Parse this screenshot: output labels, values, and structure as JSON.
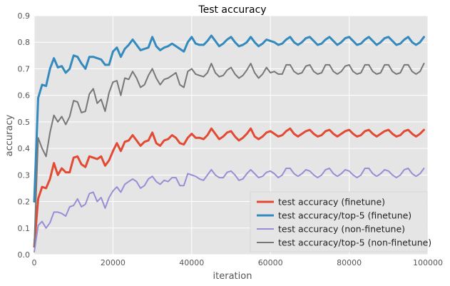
{
  "chart_data": {
    "type": "line",
    "title": "Test accuracy",
    "xlabel": "iteration",
    "ylabel": "accuracy",
    "xlim": [
      0,
      100000
    ],
    "ylim": [
      0.0,
      0.9
    ],
    "xticks": [
      0,
      20000,
      40000,
      60000,
      80000,
      100000
    ],
    "xtick_labels": [
      "0",
      "20000",
      "40000",
      "60000",
      "80000",
      "100000"
    ],
    "yticks": [
      0.0,
      0.1,
      0.2,
      0.3,
      0.4,
      0.5,
      0.6,
      0.7,
      0.8,
      0.9
    ],
    "ytick_labels": [
      "0.0",
      "0.1",
      "0.2",
      "0.3",
      "0.4",
      "0.5",
      "0.6",
      "0.7",
      "0.8",
      "0.9"
    ],
    "grid": true,
    "background": "#e5e5e5",
    "legend_position": "bottom-right",
    "x": [
      0,
      1000,
      2000,
      3000,
      4000,
      5000,
      6000,
      7000,
      8000,
      9000,
      10000,
      11000,
      12000,
      13000,
      14000,
      15000,
      16000,
      17000,
      18000,
      19000,
      20000,
      21000,
      22000,
      23000,
      24000,
      25000,
      26000,
      27000,
      28000,
      29000,
      30000,
      31000,
      32000,
      33000,
      34000,
      35000,
      36000,
      37000,
      38000,
      39000,
      40000,
      41000,
      42000,
      43000,
      44000,
      45000,
      46000,
      47000,
      48000,
      49000,
      50000,
      51000,
      52000,
      53000,
      54000,
      55000,
      56000,
      57000,
      58000,
      59000,
      60000,
      61000,
      62000,
      63000,
      64000,
      65000,
      66000,
      67000,
      68000,
      69000,
      70000,
      71000,
      72000,
      73000,
      74000,
      75000,
      76000,
      77000,
      78000,
      79000,
      80000,
      81000,
      82000,
      83000,
      84000,
      85000,
      86000,
      87000,
      88000,
      89000,
      90000,
      91000,
      92000,
      93000,
      94000,
      95000,
      96000,
      97000,
      98000,
      99000
    ],
    "series": [
      {
        "name": "test accuracy (finetune)",
        "color": "#e24a33",
        "width": 3,
        "values": [
          0.03,
          0.21,
          0.255,
          0.25,
          0.285,
          0.345,
          0.3,
          0.325,
          0.31,
          0.31,
          0.365,
          0.37,
          0.34,
          0.33,
          0.37,
          0.365,
          0.36,
          0.37,
          0.335,
          0.355,
          0.39,
          0.42,
          0.39,
          0.425,
          0.43,
          0.45,
          0.43,
          0.41,
          0.425,
          0.43,
          0.46,
          0.42,
          0.41,
          0.43,
          0.435,
          0.45,
          0.44,
          0.42,
          0.415,
          0.44,
          0.455,
          0.44,
          0.44,
          0.435,
          0.45,
          0.475,
          0.455,
          0.435,
          0.445,
          0.46,
          0.465,
          0.445,
          0.43,
          0.44,
          0.455,
          0.475,
          0.445,
          0.435,
          0.445,
          0.46,
          0.465,
          0.455,
          0.445,
          0.45,
          0.465,
          0.475,
          0.455,
          0.445,
          0.455,
          0.465,
          0.47,
          0.455,
          0.445,
          0.45,
          0.465,
          0.47,
          0.455,
          0.445,
          0.455,
          0.465,
          0.47,
          0.455,
          0.445,
          0.45,
          0.465,
          0.47,
          0.455,
          0.445,
          0.455,
          0.465,
          0.47,
          0.455,
          0.445,
          0.45,
          0.465,
          0.47,
          0.455,
          0.445,
          0.455,
          0.47
        ]
      },
      {
        "name": "test accuracy/top-5 (finetune)",
        "color": "#348abd",
        "width": 3,
        "values": [
          0.2,
          0.59,
          0.64,
          0.635,
          0.7,
          0.74,
          0.705,
          0.71,
          0.685,
          0.7,
          0.75,
          0.745,
          0.72,
          0.7,
          0.745,
          0.745,
          0.74,
          0.735,
          0.715,
          0.715,
          0.765,
          0.78,
          0.745,
          0.775,
          0.79,
          0.81,
          0.79,
          0.77,
          0.775,
          0.78,
          0.82,
          0.785,
          0.77,
          0.78,
          0.785,
          0.795,
          0.785,
          0.775,
          0.765,
          0.8,
          0.82,
          0.795,
          0.79,
          0.79,
          0.805,
          0.825,
          0.805,
          0.785,
          0.795,
          0.81,
          0.82,
          0.8,
          0.785,
          0.79,
          0.8,
          0.82,
          0.8,
          0.785,
          0.795,
          0.81,
          0.805,
          0.8,
          0.79,
          0.795,
          0.81,
          0.82,
          0.8,
          0.79,
          0.8,
          0.815,
          0.82,
          0.805,
          0.79,
          0.795,
          0.81,
          0.82,
          0.805,
          0.79,
          0.8,
          0.815,
          0.82,
          0.805,
          0.79,
          0.795,
          0.81,
          0.82,
          0.805,
          0.79,
          0.8,
          0.815,
          0.82,
          0.805,
          0.79,
          0.795,
          0.81,
          0.82,
          0.8,
          0.79,
          0.8,
          0.82
        ]
      },
      {
        "name": "test accuracy (non-finetune)",
        "color": "#988ed5",
        "width": 2,
        "values": [
          0.01,
          0.11,
          0.125,
          0.1,
          0.12,
          0.16,
          0.16,
          0.155,
          0.145,
          0.18,
          0.185,
          0.21,
          0.18,
          0.19,
          0.23,
          0.235,
          0.2,
          0.215,
          0.175,
          0.215,
          0.24,
          0.255,
          0.235,
          0.265,
          0.275,
          0.285,
          0.275,
          0.25,
          0.26,
          0.285,
          0.295,
          0.275,
          0.265,
          0.28,
          0.275,
          0.29,
          0.29,
          0.26,
          0.26,
          0.305,
          0.3,
          0.295,
          0.285,
          0.28,
          0.3,
          0.32,
          0.3,
          0.29,
          0.29,
          0.31,
          0.315,
          0.3,
          0.28,
          0.285,
          0.305,
          0.32,
          0.305,
          0.29,
          0.295,
          0.31,
          0.315,
          0.305,
          0.29,
          0.3,
          0.325,
          0.325,
          0.305,
          0.295,
          0.305,
          0.32,
          0.315,
          0.3,
          0.29,
          0.3,
          0.32,
          0.325,
          0.305,
          0.295,
          0.305,
          0.32,
          0.315,
          0.3,
          0.29,
          0.3,
          0.325,
          0.325,
          0.305,
          0.295,
          0.305,
          0.32,
          0.315,
          0.3,
          0.29,
          0.3,
          0.32,
          0.325,
          0.305,
          0.295,
          0.305,
          0.325
        ]
      },
      {
        "name": "test accuracy/top-5 (non-finetune)",
        "color": "#777777",
        "width": 2,
        "values": [
          0.03,
          0.44,
          0.4,
          0.37,
          0.46,
          0.525,
          0.5,
          0.52,
          0.49,
          0.52,
          0.58,
          0.575,
          0.535,
          0.54,
          0.605,
          0.625,
          0.57,
          0.585,
          0.54,
          0.61,
          0.65,
          0.655,
          0.6,
          0.665,
          0.66,
          0.69,
          0.665,
          0.63,
          0.64,
          0.675,
          0.7,
          0.665,
          0.64,
          0.66,
          0.665,
          0.675,
          0.685,
          0.64,
          0.63,
          0.69,
          0.7,
          0.68,
          0.675,
          0.67,
          0.685,
          0.72,
          0.685,
          0.67,
          0.675,
          0.695,
          0.705,
          0.68,
          0.665,
          0.675,
          0.695,
          0.72,
          0.685,
          0.665,
          0.68,
          0.705,
          0.685,
          0.69,
          0.68,
          0.68,
          0.715,
          0.715,
          0.69,
          0.68,
          0.685,
          0.71,
          0.715,
          0.69,
          0.68,
          0.685,
          0.715,
          0.715,
          0.69,
          0.68,
          0.69,
          0.71,
          0.715,
          0.69,
          0.68,
          0.685,
          0.715,
          0.715,
          0.69,
          0.68,
          0.685,
          0.715,
          0.715,
          0.69,
          0.68,
          0.685,
          0.715,
          0.715,
          0.69,
          0.68,
          0.69,
          0.72
        ]
      }
    ]
  }
}
